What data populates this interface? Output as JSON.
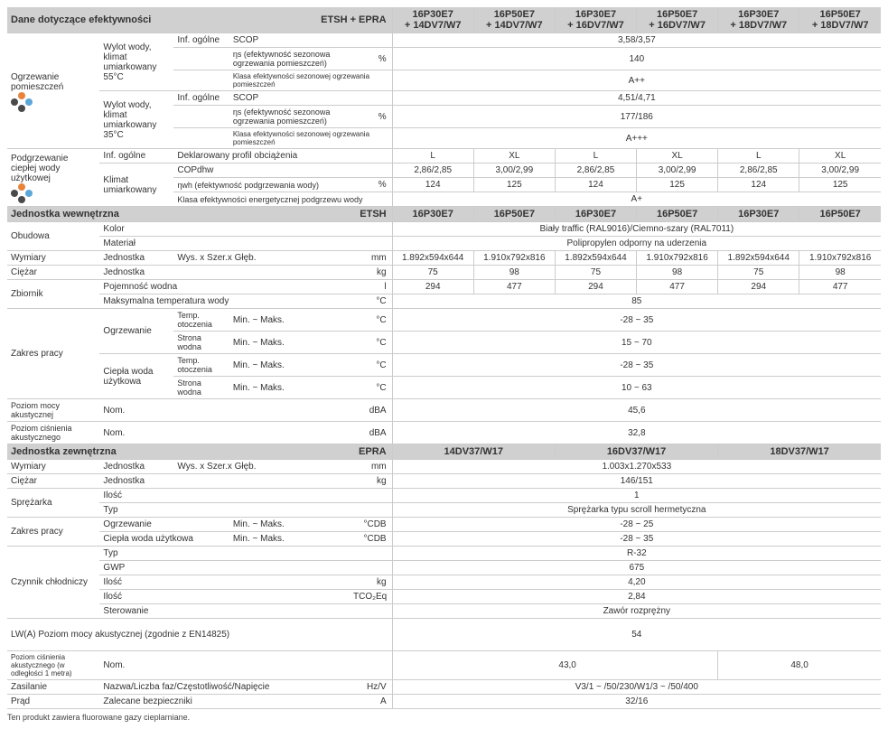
{
  "section1": {
    "title": "Dane dotyczące efektywności",
    "col_h": "ETSH + EPRA",
    "models": [
      "16P30E7\n+ 14DV7/W7",
      "16P50E7\n+ 14DV7/W7",
      "16P30E7\n+ 16DV7/W7",
      "16P50E7\n+ 16DV7/W7",
      "16P30E7\n+ 18DV7/W7",
      "16P50E7\n+ 18DV7/W7"
    ],
    "r1": {
      "a": "Ogrzewanie pomieszczeń",
      "b": "Wylot wody, klimat umiarkowany 55°C",
      "c": "Inf. ogólne",
      "d": "SCOP",
      "val": "3,58/3,57"
    },
    "r2": {
      "d": "ηs (efektywność sezonowa ogrzewania pomieszczeń)",
      "u": "%",
      "val": "140"
    },
    "r3": {
      "d": "Klasa efektywności sezonowej ogrzewania pomieszczeń",
      "val": "A++"
    },
    "r4": {
      "b": "Wylot wody, klimat umiarkowany 35°C",
      "c": "Inf. ogólne",
      "d": "SCOP",
      "val": "4,51/4,71"
    },
    "r5": {
      "d": "ηs (efektywność sezonowa ogrzewania pomieszczeń)",
      "u": "%",
      "val": "177/186"
    },
    "r6": {
      "d": "Klasa efektywności sezonowej ogrzewania pomieszczeń",
      "val": "A+++"
    },
    "r7": {
      "a": "Podgrzewanie ciepłej wody użytkowej",
      "b": "Inf. ogólne",
      "d": "Deklarowany profil obciążenia",
      "vals": [
        "L",
        "XL",
        "L",
        "XL",
        "L",
        "XL"
      ]
    },
    "r8": {
      "b": "Klimat umiarkowany",
      "d": "COPdhw",
      "vals": [
        "2,86/2,85",
        "3,00/2,99",
        "2,86/2,85",
        "3,00/2,99",
        "2,86/2,85",
        "3,00/2,99"
      ]
    },
    "r9": {
      "d": "ηwh (efektywność podgrzewania wody)",
      "u": "%",
      "vals": [
        "124",
        "125",
        "124",
        "125",
        "124",
        "125"
      ]
    },
    "r10": {
      "d": "Klasa efektywności energetycznej podgrzewu wody",
      "val": "A+"
    }
  },
  "section2": {
    "title": "Jednostka wewnętrzna",
    "col_h": "ETSH",
    "models": [
      "16P30E7",
      "16P50E7",
      "16P30E7",
      "16P50E7",
      "16P30E7",
      "16P50E7"
    ],
    "r1": {
      "a": "Obudowa",
      "b": "Kolor",
      "val": "Biały traffic (RAL9016)/Ciemno-szary (RAL7011)"
    },
    "r2": {
      "b": "Materiał",
      "val": "Polipropylen odporny na uderzenia"
    },
    "r3": {
      "a": "Wymiary",
      "b": "Jednostka",
      "d": "Wys. x Szer.x Głęb.",
      "u": "mm",
      "vals": [
        "1.892x594x644",
        "1.910x792x816",
        "1.892x594x644",
        "1.910x792x816",
        "1.892x594x644",
        "1.910x792x816"
      ]
    },
    "r4": {
      "a": "Ciężar",
      "b": "Jednostka",
      "u": "kg",
      "vals": [
        "75",
        "98",
        "75",
        "98",
        "75",
        "98"
      ]
    },
    "r5": {
      "a": "Zbiornik",
      "b": "Pojemność wodna",
      "u": "l",
      "vals": [
        "294",
        "477",
        "294",
        "477",
        "294",
        "477"
      ]
    },
    "r6": {
      "b": "Maksymalna temperatura wody",
      "u": "°C",
      "val": "85"
    },
    "r7": {
      "a": "Zakres pracy",
      "b": "Ogrzewanie",
      "c": "Temp. otoczenia",
      "d": "Min. ~ Maks.",
      "u": "°C",
      "val": "-28 ~ 35"
    },
    "r8": {
      "c": "Strona wodna",
      "d": "Min. ~ Maks.",
      "u": "°C",
      "val": "15 ~ 70"
    },
    "r9": {
      "b": "Ciepła woda użytkowa",
      "c": "Temp. otoczenia",
      "d": "Min. ~ Maks.",
      "u": "°C",
      "val": "-28 ~ 35"
    },
    "r10": {
      "c": "Strona wodna",
      "d": "Min. ~ Maks.",
      "u": "°C",
      "val": "10 ~ 63"
    },
    "r11": {
      "a": "Poziom mocy akustycznej",
      "b": "Nom.",
      "u": "dBA",
      "val": "45,6"
    },
    "r12": {
      "a": "Poziom ciśnienia akustycznego",
      "b": "Nom.",
      "u": "dBA",
      "val": "32,8"
    }
  },
  "section3": {
    "title": "Jednostka zewnętrzna",
    "col_h": "EPRA",
    "models": [
      "14DV37/W17",
      "16DV37/W17",
      "18DV37/W17"
    ],
    "r1": {
      "a": "Wymiary",
      "b": "Jednostka",
      "d": "Wys. x Szer.x Głęb.",
      "u": "mm",
      "val": "1.003x1.270x533"
    },
    "r2": {
      "a": "Ciężar",
      "b": "Jednostka",
      "u": "kg",
      "val": "146/151"
    },
    "r3": {
      "a": "Sprężarka",
      "b": "Ilość",
      "val": "1"
    },
    "r4": {
      "b": "Typ",
      "val": "Sprężarka typu scroll hermetyczna"
    },
    "r5": {
      "a": "Zakres pracy",
      "b": "Ogrzewanie",
      "d": "Min. ~ Maks.",
      "u": "°CDB",
      "val": "-28 ~ 25"
    },
    "r6": {
      "b": "Ciepła woda użytkowa",
      "d": "Min. ~ Maks.",
      "u": "°CDB",
      "val": "-28 ~ 35"
    },
    "r7": {
      "a": "Czynnik chłodniczy",
      "b": "Typ",
      "val": "R-32"
    },
    "r8": {
      "b": "GWP",
      "val": "675"
    },
    "r9": {
      "b": "Ilość",
      "u": "kg",
      "val": "4,20"
    },
    "r10": {
      "b": "Ilość",
      "u": "TCO₂Eq",
      "val": "2,84"
    },
    "r11": {
      "b": "Sterowanie",
      "val": "Zawór rozprężny"
    },
    "r12": {
      "a": "LW(A) Poziom mocy akustycznej (zgodnie z EN14825)",
      "val": "54"
    },
    "r13": {
      "a": "Poziom ciśnienia akustycznego (w odległości 1 metra)",
      "b": "Nom.",
      "vals": [
        "43,0",
        "48,0"
      ]
    },
    "r14": {
      "a": "Zasilanie",
      "b": "Nazwa/Liczba faz/Częstotliwość/Napięcie",
      "u": "Hz/V",
      "val": "V3/1 ~ /50/230/W1/3 ~ /50/400"
    },
    "r15": {
      "a": "Prąd",
      "b": "Zalecane bezpieczniki",
      "u": "A",
      "val": "32/16"
    }
  },
  "footnote": "Ten produkt zawiera fluorowane gazy cieplarniane.",
  "colors": {
    "header_bg": "#d0d0d0",
    "grid": "#cccccc",
    "dot_orange": "#e8833a",
    "dot_blue": "#5aa7d8",
    "dot_black": "#4a4a4a"
  }
}
